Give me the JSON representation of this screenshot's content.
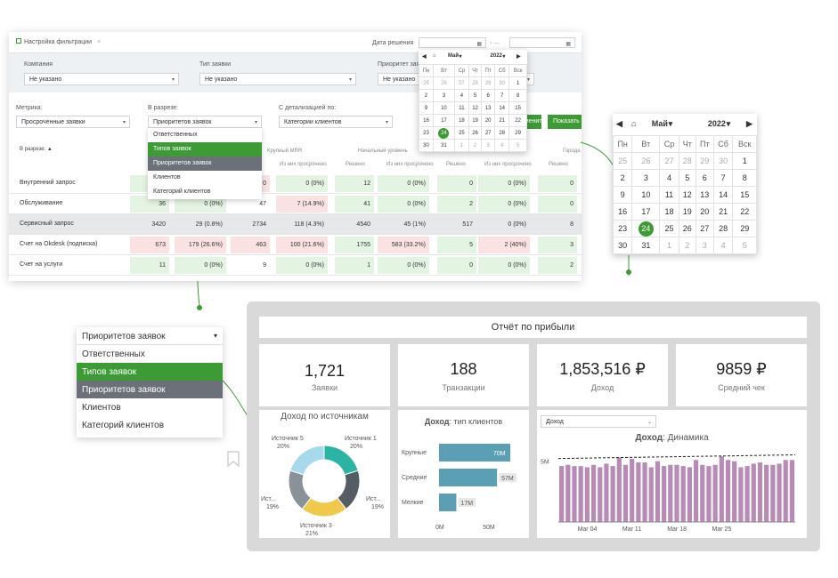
{
  "report": {
    "tab_label": "Настройка фильтрации",
    "date_label": "Дата решения",
    "date_sep": "—",
    "filters": [
      {
        "label": "Компания",
        "value": "Не указано"
      },
      {
        "label": "Тип заявки",
        "value": "Не указано"
      },
      {
        "label": "Приоритет заявки",
        "value": "Не указано"
      }
    ],
    "metric_label": "Метрика:",
    "metric_value": "Просроченные заявки",
    "slice_label": "В разрезе:",
    "slice_value": "Приоритетов заявок",
    "detail_label": "С детализацией по:",
    "detail_value": "Категории клиентов",
    "apply_label": "Применить",
    "show_label": "Показать",
    "col_first": "В разрезе: ▲",
    "col_groups": [
      "Крупный MRR",
      "Начальный уровень",
      "Города"
    ],
    "col_subs": [
      "Из них просрочено",
      "Решено",
      "Из них просрочено",
      "Решено",
      "Из них просрочено",
      "Решено"
    ],
    "rows": [
      {
        "label": "Внутренний запрос",
        "cells": [
          "",
          "",
          "0",
          "0 (0%)",
          "12",
          "0 (0%)",
          "0",
          "0 (0%)",
          "0"
        ]
      },
      {
        "label": "Обслуживание",
        "cells": [
          "36",
          "0 (0%)",
          "47",
          "7 (14.9%)",
          "41",
          "0 (0%)",
          "2",
          "0 (0%)",
          "0"
        ]
      },
      {
        "label": "Сервисный запрос",
        "cells": [
          "3420",
          "29 (0.8%)",
          "2734",
          "118 (4.3%)",
          "4540",
          "45 (1%)",
          "517",
          "0 (0%)",
          "8"
        ]
      },
      {
        "label": "Счет на Okdesk (подписка)",
        "cells": [
          "673",
          "179 (26.6%)",
          "463",
          "100 (21.6%)",
          "1755",
          "583 (33.2%)",
          "5",
          "2 (40%)",
          "3"
        ]
      },
      {
        "label": "Счет на услуги",
        "cells": [
          "11",
          "0 (0%)",
          "9",
          "0 (0%)",
          "1",
          "0 (0%)",
          "0",
          "0 (0%)",
          "2"
        ]
      }
    ]
  },
  "dropdown": {
    "selected": "Приоритетов заявок",
    "options": [
      "Ответственных",
      "Типов заявок",
      "Приоритетов заявок",
      "Клиентов",
      "Категорий клиентов"
    ],
    "active_index": 1,
    "dark_index": 2
  },
  "calendar": {
    "month": "Май",
    "year": "2022",
    "weekdays": [
      "Пн",
      "Вт",
      "Ср",
      "Чт",
      "Пт",
      "Сб",
      "Вск"
    ],
    "weeks": [
      [
        "25",
        "26",
        "27",
        "28",
        "29",
        "30",
        "1"
      ],
      [
        "2",
        "3",
        "4",
        "5",
        "6",
        "7",
        "8"
      ],
      [
        "9",
        "10",
        "11",
        "12",
        "13",
        "14",
        "15"
      ],
      [
        "16",
        "17",
        "18",
        "19",
        "20",
        "21",
        "22"
      ],
      [
        "23",
        "24",
        "25",
        "26",
        "27",
        "28",
        "29"
      ],
      [
        "30",
        "31",
        "1",
        "2",
        "3",
        "4",
        "5"
      ]
    ],
    "selected_day": "24"
  },
  "dashboard": {
    "title": "Отчёт по прибыли",
    "kpis": [
      {
        "value": "1,721",
        "label": "Заявки"
      },
      {
        "value": "188",
        "label": "Транзакции"
      },
      {
        "value": "1,853,516 ₽",
        "label": "Доход"
      },
      {
        "value": "9859 ₽",
        "label": "Средний чек"
      }
    ],
    "donut_title": "Доход по источникам",
    "donut": [
      {
        "name": "Источник 1",
        "pct": "20%",
        "value": 20,
        "color": "#2bb3a3"
      },
      {
        "name": "Ист...",
        "pct": "19%",
        "value": 19,
        "color": "#555d64"
      },
      {
        "name": "Источник 3",
        "pct": "21%",
        "value": 21,
        "color": "#f0c94a"
      },
      {
        "name": "Ист...",
        "pct": "19%",
        "value": 19,
        "color": "#8a9299"
      },
      {
        "name": "Источник 5",
        "pct": "20%",
        "value": 20,
        "color": "#a8d8ec"
      }
    ],
    "bar_title_bold": "Доход",
    "bar_title_rest": ": тип клиентов",
    "bars": [
      {
        "label": "Крупные",
        "value": 70,
        "text": "70M"
      },
      {
        "label": "Средние",
        "value": 57,
        "text": "57M"
      },
      {
        "label": "Мелкие",
        "value": 17,
        "text": "17M"
      }
    ],
    "bar_axis": [
      "0M",
      "50M"
    ],
    "dyn_select": "Доход",
    "dyn_title_bold": "Доход",
    "dyn_title_rest": ": Динамика",
    "dyn_y_label": "5M",
    "dyn_x_labels": [
      "Mar 04",
      "Mar 11",
      "Mar 18",
      "Mar 25"
    ],
    "dyn_values": [
      4.6,
      4.7,
      4.6,
      4.6,
      4.5,
      4.7,
      4.5,
      4.8,
      4.6,
      5.3,
      4.7,
      5.2,
      4.9,
      4.9,
      4.5,
      5.0,
      4.6,
      4.7,
      4.7,
      4.6,
      4.5,
      5.1,
      4.7,
      4.6,
      4.7,
      5.4,
      5.1,
      5.0,
      4.5,
      4.6,
      4.8,
      4.9,
      4.7,
      4.7,
      4.8,
      5.1,
      5.1
    ],
    "dyn_colors": {
      "bar": "#b88ab6",
      "line": "#222222"
    }
  }
}
